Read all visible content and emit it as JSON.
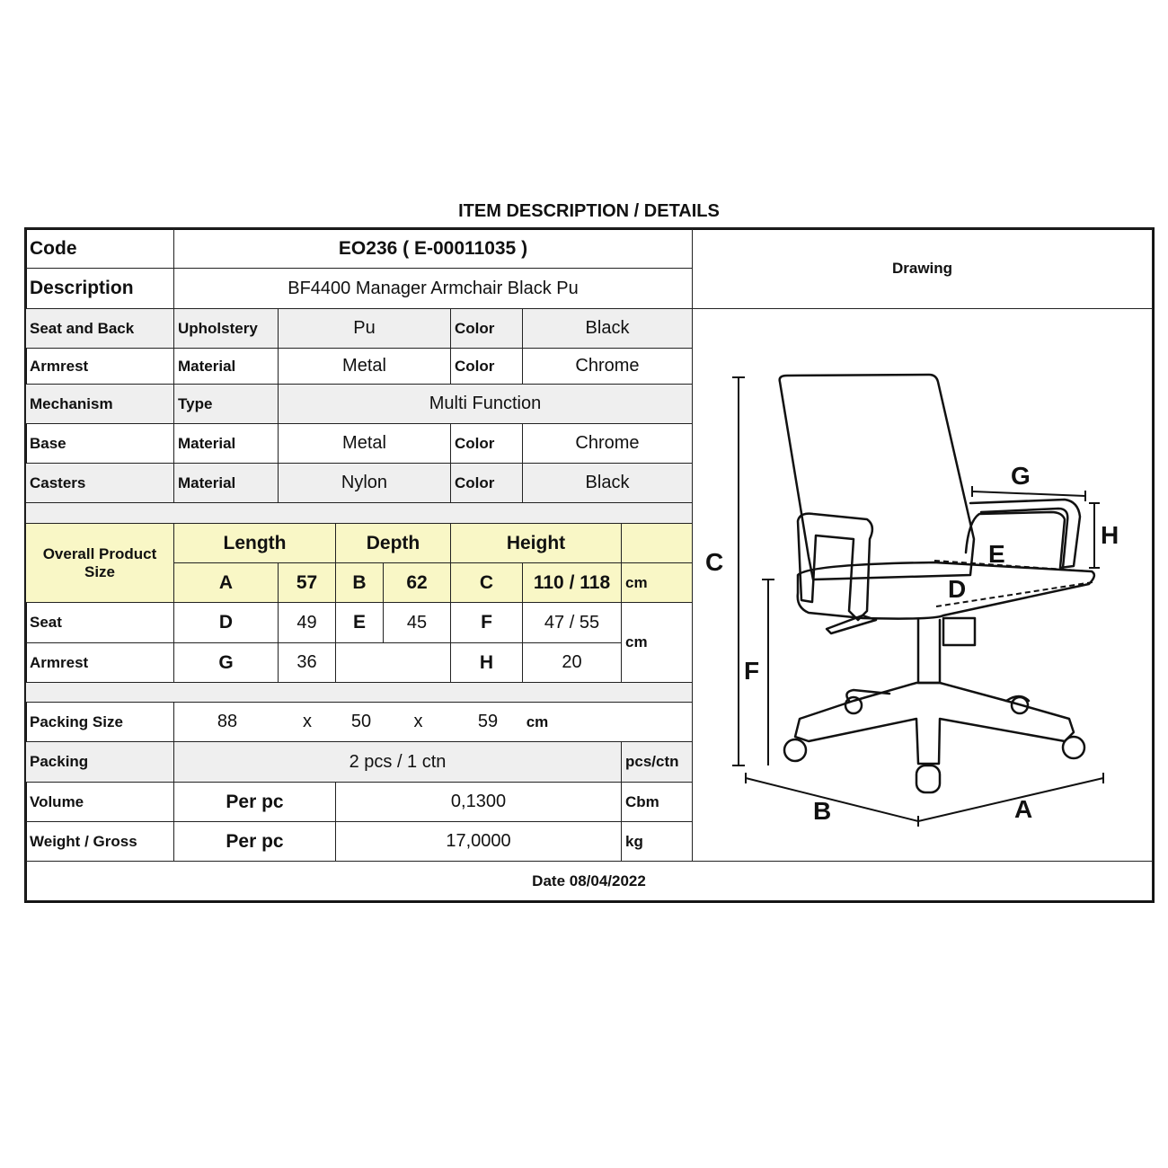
{
  "title": "ITEM DESCRIPTION / DETAILS",
  "code": {
    "label": "Code",
    "value": "EO236  ( E-00011035 )"
  },
  "description": {
    "label": "Description",
    "value": "BF4400 Manager Armchair Black Pu"
  },
  "drawing": {
    "label": "Drawing",
    "dims": [
      "A",
      "B",
      "C",
      "D",
      "E",
      "F",
      "G",
      "H"
    ]
  },
  "specs": [
    {
      "part": "Seat and Back",
      "attr": "Upholstery",
      "value": "Pu",
      "color_label": "Color",
      "color": "Black"
    },
    {
      "part": "Armrest",
      "attr": "Material",
      "value": "Metal",
      "color_label": "Color",
      "color": "Chrome"
    },
    {
      "part": "Mechanism",
      "attr": "Type",
      "value": "Multi  Function"
    },
    {
      "part": "Base",
      "attr": "Material",
      "value": "Metal",
      "color_label": "Color",
      "color": "Chrome"
    },
    {
      "part": "Casters",
      "attr": "Material",
      "value": "Nylon",
      "color_label": "Color",
      "color": "Black"
    }
  ],
  "size": {
    "label": "Overall Product Size",
    "headers": [
      "Length",
      "Depth",
      "Height"
    ],
    "overall": {
      "a": "A",
      "a_val": "57",
      "b": "B",
      "b_val": "62",
      "c": "C",
      "c_val": "110 / 118",
      "unit": "cm"
    },
    "seat": {
      "label": "Seat",
      "d": "D",
      "d_val": "49",
      "e": "E",
      "e_val": "45",
      "f": "F",
      "f_val": "47 / 55"
    },
    "armrest": {
      "label": "Armrest",
      "g": "G",
      "g_val": "36",
      "h": "H",
      "h_val": "20"
    },
    "unit": "cm"
  },
  "packing_size": {
    "label": "Packing Size",
    "l": "88",
    "x1": "x",
    "w": "50",
    "x2": "x",
    "h": "59",
    "unit": "cm"
  },
  "packing": {
    "label": "Packing",
    "value": "2 pcs / 1 ctn",
    "unit": "pcs/ctn"
  },
  "volume": {
    "label": "Volume",
    "per": "Per pc",
    "value": "0,1300",
    "unit": "Cbm"
  },
  "weight": {
    "label": "Weight / Gross",
    "per": "Per pc",
    "value": "17,0000",
    "unit": "kg"
  },
  "date": "Date 08/04/2022",
  "colors": {
    "highlight": "#f9f7c6",
    "shade": "#efefef"
  }
}
